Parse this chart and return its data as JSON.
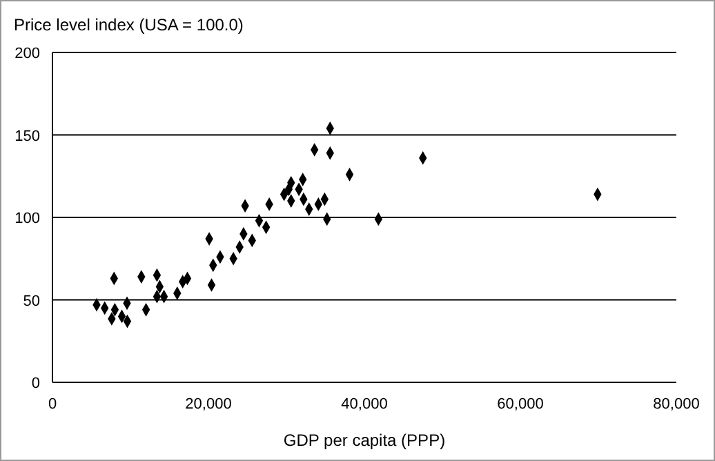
{
  "chart_data": {
    "type": "scatter",
    "title": "Price level index (USA = 100.0)",
    "xlabel": "GDP per capita (PPP)",
    "x": [
      5664,
      6700,
      7600,
      8000,
      7900,
      8900,
      9600,
      9560,
      11400,
      12000,
      13400,
      13750,
      13400,
      14300,
      16000,
      16700,
      17300,
      20100,
      20600,
      20400,
      21500,
      23200,
      24000,
      24500,
      24700,
      25600,
      26500,
      27400,
      27800,
      29700,
      30300,
      30600,
      30600,
      31600,
      32100,
      32200,
      32900,
      33600,
      34100,
      34900,
      35200,
      35600,
      35600,
      38100,
      41800,
      47500,
      69900
    ],
    "values": [
      47,
      45,
      38.5,
      44,
      63,
      40,
      37,
      48,
      64,
      44,
      65,
      58,
      52,
      52,
      54,
      61,
      63,
      87,
      71,
      59,
      76,
      75,
      82,
      90,
      107,
      86,
      98,
      94,
      108,
      114,
      117,
      121,
      110,
      117,
      123,
      111,
      105,
      141,
      108,
      111,
      99,
      154,
      139,
      126,
      99,
      136,
      114
    ],
    "color": "#000000",
    "marker": "diamond",
    "xlim": [
      0,
      80000
    ],
    "xticks": [
      {
        "value": 0,
        "label": "0"
      },
      {
        "value": 20000,
        "label": "20,000"
      },
      {
        "value": 40000,
        "label": "40,000"
      },
      {
        "value": 60000,
        "label": "60,000"
      },
      {
        "value": 80000,
        "label": "80,000"
      }
    ],
    "ylim": [
      0,
      200
    ],
    "yticks": [
      0,
      50,
      100,
      150,
      200
    ],
    "grid": "y"
  }
}
